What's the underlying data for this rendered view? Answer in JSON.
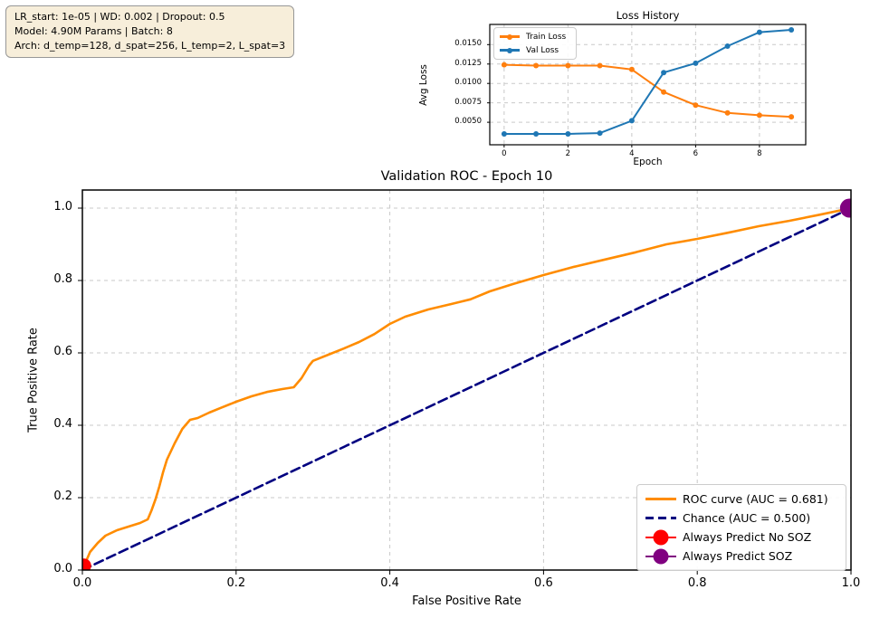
{
  "info_box": {
    "line1": "LR_start: 1e-05 | WD: 0.002 | Dropout: 0.5",
    "line2": "Model: 4.90M Params | Batch: 8",
    "line3": "Arch: d_temp=128, d_spat=256, L_temp=2, L_spat=3"
  },
  "colors": {
    "train_loss": "#ff7f0e",
    "val_loss": "#1f77b4",
    "roc_curve": "#ff8c00",
    "chance": "#000080",
    "always_no_soz": "#ff0000",
    "always_soz": "#800080",
    "grid": "#c9c9c9",
    "infobox_bg": "#f7eeda"
  },
  "chart_data": [
    {
      "id": "loss-history",
      "type": "line",
      "title": "Loss History",
      "xlabel": "Epoch",
      "ylabel": "Avg Loss",
      "x": [
        0,
        1,
        2,
        3,
        4,
        5,
        6,
        7,
        8,
        9
      ],
      "series": [
        {
          "name": "Train Loss",
          "color": "#ff7f0e",
          "values": [
            0.0124,
            0.0123,
            0.0123,
            0.0123,
            0.0118,
            0.0089,
            0.0072,
            0.0062,
            0.0059,
            0.0057
          ]
        },
        {
          "name": "Val Loss",
          "color": "#1f77b4",
          "values": [
            0.0035,
            0.0035,
            0.0035,
            0.0036,
            0.0052,
            0.0114,
            0.0126,
            0.0148,
            0.0166,
            0.0169
          ]
        }
      ],
      "xlim": [
        -0.45,
        9.45
      ],
      "ylim": [
        0.0021,
        0.0176
      ],
      "xticks": [
        0,
        2,
        4,
        6,
        8
      ],
      "xtick_labels": [
        "0",
        "2",
        "4",
        "6",
        "8"
      ],
      "yticks": [
        0.005,
        0.0075,
        0.01,
        0.0125,
        0.015
      ],
      "ytick_labels": [
        "0.0050",
        "0.0075",
        "0.0100",
        "0.0125",
        "0.0150"
      ],
      "grid": true,
      "legend_position": "upper left",
      "legend": [
        {
          "label": "Train Loss",
          "symbol": "line-marker",
          "color": "#ff7f0e"
        },
        {
          "label": "Val Loss",
          "symbol": "line-marker",
          "color": "#1f77b4"
        }
      ]
    },
    {
      "id": "validation-roc",
      "type": "line",
      "title": "Validation ROC - Epoch 10",
      "xlabel": "False Positive Rate",
      "ylabel": "True Positive Rate",
      "auc": 0.681,
      "xlim": [
        0.0,
        1.0
      ],
      "ylim": [
        0.0,
        1.05
      ],
      "xticks": [
        0.0,
        0.2,
        0.4,
        0.6,
        0.8,
        1.0
      ],
      "xtick_labels": [
        "0.0",
        "0.2",
        "0.4",
        "0.6",
        "0.8",
        "1.0"
      ],
      "yticks": [
        0.0,
        0.2,
        0.4,
        0.6,
        0.8,
        1.0
      ],
      "ytick_labels": [
        "0.0",
        "0.2",
        "0.4",
        "0.6",
        "0.8",
        "1.0"
      ],
      "grid": true,
      "series": [
        {
          "name": "ROC curve (AUC = 0.681)",
          "color": "#ff8c00",
          "style": "solid",
          "points": [
            [
              0,
              0
            ],
            [
              0.005,
              0.025
            ],
            [
              0.01,
              0.05
            ],
            [
              0.02,
              0.075
            ],
            [
              0.03,
              0.095
            ],
            [
              0.045,
              0.11
            ],
            [
              0.06,
              0.12
            ],
            [
              0.075,
              0.13
            ],
            [
              0.085,
              0.14
            ],
            [
              0.09,
              0.165
            ],
            [
              0.095,
              0.195
            ],
            [
              0.1,
              0.23
            ],
            [
              0.105,
              0.27
            ],
            [
              0.11,
              0.305
            ],
            [
              0.12,
              0.35
            ],
            [
              0.13,
              0.39
            ],
            [
              0.14,
              0.415
            ],
            [
              0.15,
              0.42
            ],
            [
              0.165,
              0.435
            ],
            [
              0.18,
              0.448
            ],
            [
              0.2,
              0.465
            ],
            [
              0.22,
              0.48
            ],
            [
              0.24,
              0.492
            ],
            [
              0.26,
              0.5
            ],
            [
              0.275,
              0.505
            ],
            [
              0.285,
              0.53
            ],
            [
              0.295,
              0.565
            ],
            [
              0.3,
              0.578
            ],
            [
              0.32,
              0.595
            ],
            [
              0.34,
              0.612
            ],
            [
              0.36,
              0.63
            ],
            [
              0.38,
              0.652
            ],
            [
              0.4,
              0.68
            ],
            [
              0.42,
              0.7
            ],
            [
              0.45,
              0.72
            ],
            [
              0.48,
              0.735
            ],
            [
              0.505,
              0.748
            ],
            [
              0.53,
              0.77
            ],
            [
              0.56,
              0.79
            ],
            [
              0.6,
              0.815
            ],
            [
              0.64,
              0.838
            ],
            [
              0.68,
              0.858
            ],
            [
              0.72,
              0.878
            ],
            [
              0.76,
              0.9
            ],
            [
              0.8,
              0.915
            ],
            [
              0.84,
              0.932
            ],
            [
              0.88,
              0.95
            ],
            [
              0.92,
              0.965
            ],
            [
              0.96,
              0.982
            ],
            [
              1,
              1
            ]
          ]
        },
        {
          "name": "Chance (AUC = 0.500)",
          "color": "#000080",
          "style": "dashed",
          "points": [
            [
              0,
              0
            ],
            [
              1,
              1
            ]
          ]
        }
      ],
      "markers": [
        {
          "label": "Always Predict No SOZ",
          "color": "#ff0000",
          "point": [
            0.002,
            0.012
          ]
        },
        {
          "label": "Always Predict SOZ",
          "color": "#800080",
          "point": [
            0.998,
            1.0
          ]
        }
      ],
      "legend_position": "lower right",
      "legend": [
        {
          "label": "ROC curve (AUC = 0.681)",
          "symbol": "line",
          "color": "#ff8c00"
        },
        {
          "label": "Chance (AUC = 0.500)",
          "symbol": "dashed",
          "color": "#000080"
        },
        {
          "label": "Always Predict No SOZ",
          "symbol": "dot",
          "color": "#ff0000"
        },
        {
          "label": "Always Predict SOZ",
          "symbol": "dot",
          "color": "#800080"
        }
      ]
    }
  ]
}
